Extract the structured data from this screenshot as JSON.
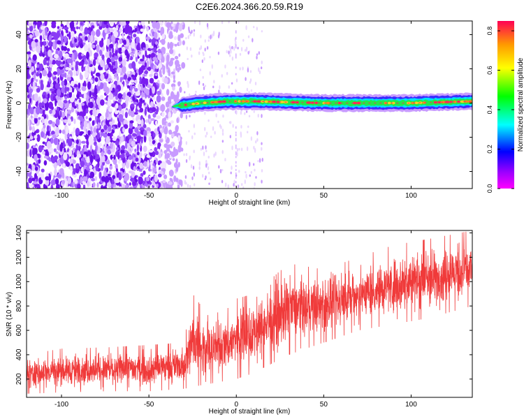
{
  "figure_title": "C2E6.2024.366.20.59.R19",
  "colors": {
    "snr_line": "#f03a3a",
    "ridge_core": "#ff2a55",
    "speckle": "#7a1cf0"
  },
  "chart_data": [
    {
      "type": "heatmap",
      "title": "C2E6.2024.366.20.59.R19",
      "xlabel": "Height of straight line (km)",
      "ylabel": "Frequency (Hz)",
      "xlim": [
        -120,
        135
      ],
      "ylim": [
        -50,
        48
      ],
      "xticks": [
        -100,
        -50,
        0,
        50,
        100
      ],
      "yticks": [
        -40,
        -20,
        0,
        20,
        40
      ],
      "colorbar": {
        "label": "Normalized spectral amplitude",
        "range": [
          0.0,
          0.85
        ],
        "ticks": [
          0.0,
          0.2,
          0.4,
          0.6,
          0.8
        ],
        "colormap": [
          "#ff00ff",
          "#9900ff",
          "#0000ff",
          "#00ffff",
          "#00ff00",
          "#ffff00",
          "#ff9900",
          "#ff0055"
        ]
      },
      "noise_region_x": [
        -120,
        -30
      ],
      "ridge": {
        "x_start": -37,
        "x_end": 135,
        "center_freq": [
          {
            "x": -37,
            "y": -2
          },
          {
            "x": -20,
            "y": 0
          },
          {
            "x": -5,
            "y": 1
          },
          {
            "x": 10,
            "y": 1
          },
          {
            "x": 50,
            "y": 0
          },
          {
            "x": 100,
            "y": 0
          },
          {
            "x": 135,
            "y": 1
          }
        ],
        "half_width_hz": 2.5
      },
      "grid": false,
      "legend": "none"
    },
    {
      "type": "line",
      "xlabel": "Height of straight line (km)",
      "ylabel": "SNR (10 * v/v)",
      "xlim": [
        -120,
        135
      ],
      "ylim": [
        50,
        1420
      ],
      "xticks": [
        -100,
        -50,
        0,
        50,
        100
      ],
      "yticks": [
        200,
        400,
        600,
        800,
        1000,
        1200,
        1400
      ],
      "series": [
        {
          "upper_envelope": [
            {
              "x": -120,
              "y": 400
            },
            {
              "x": -100,
              "y": 450
            },
            {
              "x": -75,
              "y": 460
            },
            {
              "x": -50,
              "y": 480
            },
            {
              "x": -30,
              "y": 500
            },
            {
              "x": -25,
              "y": 900
            },
            {
              "x": -15,
              "y": 700
            },
            {
              "x": 0,
              "y": 860
            },
            {
              "x": 10,
              "y": 900
            },
            {
              "x": 30,
              "y": 1150
            },
            {
              "x": 50,
              "y": 1100
            },
            {
              "x": 70,
              "y": 1200
            },
            {
              "x": 90,
              "y": 1300
            },
            {
              "x": 110,
              "y": 1350
            },
            {
              "x": 135,
              "y": 1420
            }
          ],
          "lower_envelope": [
            {
              "x": -120,
              "y": 80
            },
            {
              "x": -100,
              "y": 90
            },
            {
              "x": -75,
              "y": 100
            },
            {
              "x": -50,
              "y": 100
            },
            {
              "x": -30,
              "y": 120
            },
            {
              "x": -20,
              "y": 150
            },
            {
              "x": 0,
              "y": 200
            },
            {
              "x": 10,
              "y": 250
            },
            {
              "x": 30,
              "y": 400
            },
            {
              "x": 50,
              "y": 500
            },
            {
              "x": 70,
              "y": 600
            },
            {
              "x": 90,
              "y": 650
            },
            {
              "x": 110,
              "y": 700
            },
            {
              "x": 135,
              "y": 800
            }
          ]
        }
      ],
      "grid": false,
      "legend": "none"
    }
  ]
}
